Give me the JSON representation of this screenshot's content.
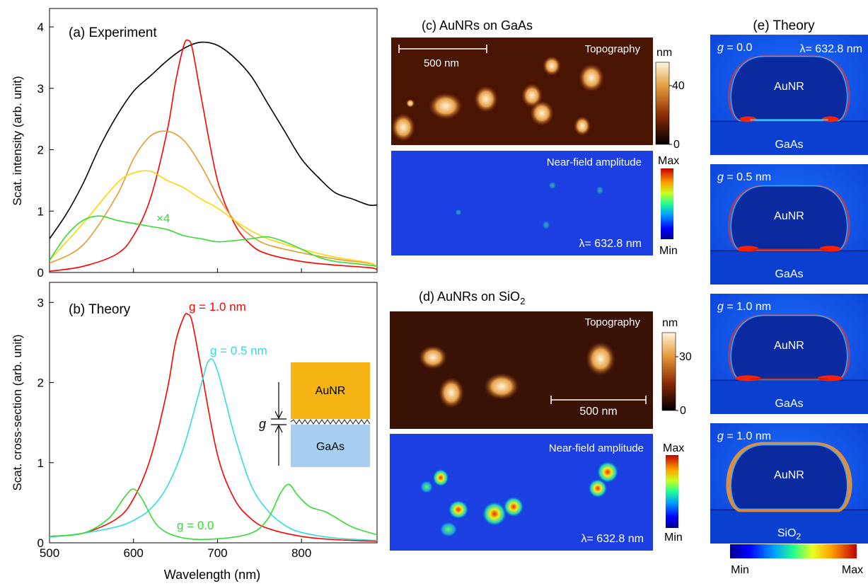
{
  "chart_data": [
    {
      "panel": "(a)",
      "title": "Experiment",
      "type": "line",
      "ylabel": "Scat. intensity (arb. unit)",
      "xlim": [
        500,
        890
      ],
      "ylim": [
        0,
        4.3
      ],
      "y_ticks": [
        0,
        1,
        2,
        3,
        4
      ],
      "grid": false,
      "annotation": "×4",
      "series": [
        {
          "color": "#000000",
          "x": [
            500,
            520,
            540,
            560,
            580,
            600,
            620,
            640,
            660,
            680,
            700,
            720,
            740,
            760,
            780,
            800,
            820,
            840,
            860,
            880,
            890
          ],
          "y": [
            0.55,
            0.95,
            1.45,
            2.05,
            2.55,
            2.95,
            3.2,
            3.45,
            3.65,
            3.75,
            3.7,
            3.5,
            3.2,
            2.75,
            2.3,
            1.85,
            1.55,
            1.3,
            1.2,
            1.1,
            1.1
          ]
        },
        {
          "color": "#ff0000",
          "x": [
            500,
            540,
            580,
            600,
            620,
            640,
            650,
            660,
            665,
            670,
            680,
            700,
            720,
            740,
            760,
            800,
            840,
            880,
            890
          ],
          "y": [
            0.02,
            0.1,
            0.3,
            0.6,
            1.2,
            2.3,
            3.1,
            3.7,
            3.78,
            3.65,
            2.9,
            1.5,
            0.8,
            0.45,
            0.3,
            0.18,
            0.12,
            0.08,
            0.05
          ]
        },
        {
          "color": "#e89a2c",
          "x": [
            500,
            540,
            580,
            600,
            620,
            640,
            660,
            680,
            700,
            720,
            740,
            760,
            800,
            840,
            880,
            890
          ],
          "y": [
            0.15,
            0.45,
            1.25,
            1.85,
            2.22,
            2.3,
            2.15,
            1.75,
            1.25,
            0.85,
            0.6,
            0.45,
            0.32,
            0.22,
            0.15,
            0.1
          ]
        },
        {
          "color": "#ffd700",
          "x": [
            500,
            540,
            580,
            600,
            620,
            640,
            660,
            680,
            700,
            720,
            740,
            760,
            800,
            840,
            880,
            890
          ],
          "y": [
            0.2,
            0.8,
            1.45,
            1.62,
            1.65,
            1.5,
            1.38,
            1.2,
            1.05,
            0.85,
            0.68,
            0.55,
            0.38,
            0.25,
            0.16,
            0.1
          ]
        },
        {
          "color": "#33dd33",
          "x": [
            500,
            520,
            540,
            560,
            580,
            600,
            620,
            640,
            660,
            680,
            700,
            720,
            740,
            760,
            780,
            800,
            820,
            840,
            860,
            880,
            890
          ],
          "y": [
            0.2,
            0.6,
            0.85,
            0.92,
            0.85,
            0.8,
            0.75,
            0.7,
            0.6,
            0.55,
            0.5,
            0.52,
            0.55,
            0.58,
            0.5,
            0.38,
            0.25,
            0.18,
            0.15,
            0.12,
            0.1
          ]
        }
      ]
    },
    {
      "panel": "(b)",
      "title": "Theory",
      "type": "line",
      "xlabel": "Wavelength (nm)",
      "ylabel": "Scat. cross-section (arb. unit)",
      "xlim": [
        500,
        890
      ],
      "ylim": [
        0,
        3.25
      ],
      "x_ticks": [
        500,
        600,
        700,
        800
      ],
      "y_ticks": [
        0,
        1,
        2,
        3
      ],
      "grid": false,
      "series": [
        {
          "name": "g = 1.0 nm",
          "color": "#ff0000",
          "x": [
            500,
            540,
            580,
            600,
            620,
            640,
            650,
            660,
            665,
            670,
            680,
            700,
            720,
            740,
            760,
            800,
            840,
            890
          ],
          "y": [
            0.08,
            0.12,
            0.3,
            0.55,
            1.05,
            1.9,
            2.5,
            2.82,
            2.85,
            2.75,
            2.2,
            1.1,
            0.55,
            0.3,
            0.18,
            0.08,
            0.04,
            0.02
          ]
        },
        {
          "name": "g = 0.5 nm",
          "color": "#33dddd",
          "x": [
            500,
            540,
            580,
            600,
            620,
            640,
            660,
            680,
            690,
            700,
            720,
            740,
            760,
            780,
            800,
            840,
            890
          ],
          "y": [
            0.07,
            0.12,
            0.2,
            0.28,
            0.42,
            0.7,
            1.2,
            1.95,
            2.28,
            2.15,
            1.35,
            0.72,
            0.4,
            0.22,
            0.13,
            0.06,
            0.03
          ]
        },
        {
          "name": "g = 0.0",
          "color": "#33dd33",
          "x": [
            500,
            540,
            570,
            590,
            600,
            610,
            630,
            660,
            700,
            740,
            760,
            775,
            785,
            795,
            810,
            830,
            860,
            890
          ],
          "y": [
            0.08,
            0.12,
            0.3,
            0.58,
            0.67,
            0.55,
            0.2,
            0.06,
            0.05,
            0.12,
            0.3,
            0.62,
            0.73,
            0.6,
            0.45,
            0.38,
            0.2,
            0.1
          ]
        }
      ],
      "inset": {
        "top_label": "AuNR",
        "bottom_label": "GaAs",
        "gap_label": "g"
      }
    }
  ],
  "panels": {
    "c": {
      "title": "(c) AuNRs  on GaAs",
      "topo_label": "Topography",
      "scale_bar": "500 nm",
      "topo_unit": "nm",
      "topo_ticks": [
        "40",
        "0"
      ],
      "nf_label": "Near-field amplitude",
      "nf_max": "Max",
      "nf_min": "Min",
      "wavelength": "λ= 632.8 nm"
    },
    "d": {
      "title_main": "(d) AuNRs  on SiO",
      "title_sub": "2",
      "topo_label": "Topography",
      "scale_bar": "500 nm",
      "topo_unit": "nm",
      "topo_ticks": [
        "30",
        "0"
      ],
      "nf_label": "Near-field amplitude",
      "nf_max": "Max",
      "nf_min": "Min",
      "wavelength": "λ= 632.8 nm"
    },
    "e": {
      "title": "(e) Theory",
      "wavelength": "λ= 632.8 nm",
      "maps": [
        {
          "g": "g",
          "gap": " = 0.0",
          "rod": "AuNR",
          "substrate": "GaAs",
          "substrate_sub": ""
        },
        {
          "g": "g",
          "gap": " = 0.5 nm",
          "rod": "AuNR",
          "substrate": "GaAs",
          "substrate_sub": ""
        },
        {
          "g": "g",
          "gap": " = 1.0 nm",
          "rod": "AuNR",
          "substrate": "GaAs",
          "substrate_sub": ""
        },
        {
          "g": "g",
          "gap": " = 1.0 nm",
          "rod": "AuNR",
          "substrate": "SiO",
          "substrate_sub": "2"
        }
      ],
      "colorbar_min": "Min",
      "colorbar_max": "Max"
    }
  }
}
